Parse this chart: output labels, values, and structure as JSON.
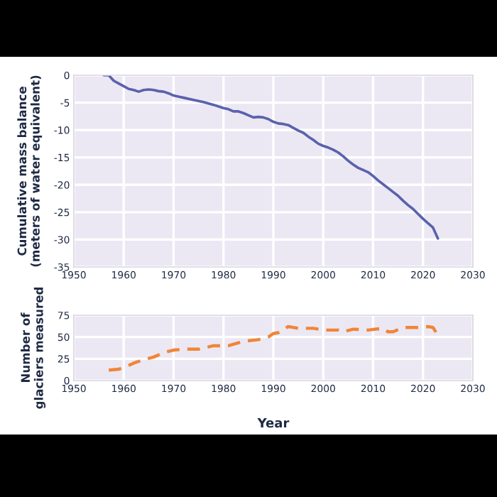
{
  "chart_data": [
    {
      "type": "line",
      "ylabel": "Cumulative mass balance\n(meters of water equivalent)",
      "x": [
        1956,
        1957,
        1958,
        1959,
        1960,
        1961,
        1962,
        1963,
        1964,
        1965,
        1966,
        1967,
        1968,
        1969,
        1970,
        1972,
        1974,
        1976,
        1978,
        1980,
        1981,
        1982,
        1983,
        1984,
        1985,
        1986,
        1987,
        1988,
        1989,
        1990,
        1991,
        1992,
        1993,
        1994,
        1995,
        1996,
        1997,
        1998,
        1999,
        2000,
        2001,
        2002,
        2003,
        2004,
        2005,
        2006,
        2007,
        2008,
        2009,
        2010,
        2011,
        2012,
        2013,
        2014,
        2015,
        2016,
        2017,
        2018,
        2019,
        2020,
        2021,
        2022,
        2023
      ],
      "series": [
        {
          "color": "#5a62ac",
          "values": [
            0,
            0,
            -1,
            -1.5,
            -2,
            -2.5,
            -2.7,
            -3,
            -2.7,
            -2.6,
            -2.7,
            -2.9,
            -3,
            -3.3,
            -3.7,
            -4.1,
            -4.5,
            -4.9,
            -5.4,
            -6,
            -6.2,
            -6.6,
            -6.6,
            -6.9,
            -7.3,
            -7.7,
            -7.6,
            -7.7,
            -8,
            -8.5,
            -8.8,
            -8.9,
            -9.1,
            -9.6,
            -10.1,
            -10.5,
            -11.2,
            -11.8,
            -12.5,
            -12.9,
            -13.2,
            -13.6,
            -14.1,
            -14.8,
            -15.6,
            -16.3,
            -16.9,
            -17.3,
            -17.7,
            -18.4,
            -19.2,
            -19.9,
            -20.6,
            -21.3,
            -22,
            -22.9,
            -23.7,
            -24.4,
            -25.3,
            -26.2,
            -27,
            -27.8,
            -29.8
          ]
        }
      ],
      "xlim": [
        1950,
        2030
      ],
      "xticks": [
        1950,
        1960,
        1970,
        1980,
        1990,
        2000,
        2010,
        2020,
        2030
      ],
      "ylim": [
        -35,
        0
      ],
      "yticks": [
        0,
        -5,
        -10,
        -15,
        -20,
        -25,
        -30,
        -35
      ],
      "grid": true,
      "line_style": "solid"
    },
    {
      "type": "line",
      "ylabel": "Number of\nglaciers measured",
      "xlabel": "Year",
      "x": [
        1957,
        1959,
        1960,
        1962,
        1964,
        1966,
        1968,
        1970,
        1972,
        1975,
        1978,
        1981,
        1984,
        1987,
        1989,
        1990,
        1991,
        1993,
        1995,
        1998,
        2000,
        2003,
        2004,
        2006,
        2009,
        2012,
        2013,
        2014,
        2016,
        2019,
        2021,
        2022,
        2023
      ],
      "series": [
        {
          "color": "#f08538",
          "values": [
            12,
            13,
            15,
            20,
            24,
            27,
            32,
            35,
            36,
            36,
            40,
            40,
            45,
            47,
            50,
            54,
            55,
            62,
            60,
            60,
            58,
            58,
            56,
            59,
            58,
            60,
            56,
            56,
            61,
            61,
            62,
            61,
            52
          ]
        }
      ],
      "xlim": [
        1950,
        2030
      ],
      "xticks": [
        1950,
        1960,
        1970,
        1980,
        1990,
        2000,
        2010,
        2020,
        2030
      ],
      "ylim": [
        0,
        75
      ],
      "yticks": [
        0,
        25,
        50,
        75
      ],
      "grid": true,
      "line_style": "dashed"
    }
  ]
}
